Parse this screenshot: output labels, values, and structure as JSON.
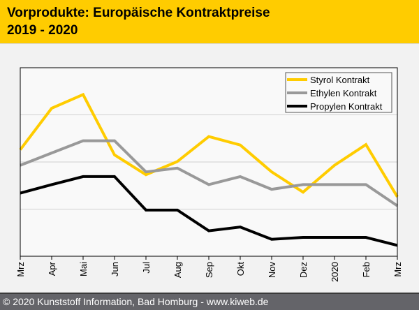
{
  "header": {
    "title_line1": "Vorprodukte: Europäische Kontraktpreise",
    "title_line2": "2019 - 2020"
  },
  "footer": {
    "text": "© 2020 Kunststoff Information, Bad Homburg - www.kiweb.de"
  },
  "colors": {
    "header_bg": "#ffcc00",
    "footer_bg": "#646469",
    "styrol": "#ffcc00",
    "ethylen": "#999999",
    "propylen": "#000000"
  },
  "chart_data": {
    "type": "line",
    "title": "",
    "xlabel": "",
    "ylabel": "",
    "categories": [
      "Mrz",
      "Apr",
      "Mai",
      "Jun",
      "Jul",
      "Aug",
      "Sep",
      "Okt",
      "Nov",
      "Dez",
      "2020",
      "Feb",
      "Mrz"
    ],
    "ylim": [
      0,
      4
    ],
    "y_ticks_labeled": false,
    "grid": "horizontal",
    "legend_position": "top-right",
    "series": [
      {
        "name": "Styrol Kontrakt",
        "color": "#ffcc00",
        "values": [
          2.26,
          3.14,
          3.43,
          2.15,
          1.73,
          2.01,
          2.54,
          2.36,
          1.79,
          1.36,
          1.93,
          2.37,
          1.26
        ]
      },
      {
        "name": "Ethylen Kontrakt",
        "color": "#999999",
        "values": [
          1.93,
          2.19,
          2.45,
          2.45,
          1.79,
          1.87,
          1.52,
          1.69,
          1.42,
          1.52,
          1.52,
          1.52,
          1.07
        ]
      },
      {
        "name": "Propylen Kontrakt",
        "color": "#000000",
        "values": [
          1.34,
          1.52,
          1.69,
          1.69,
          0.98,
          0.98,
          0.54,
          0.62,
          0.36,
          0.4,
          0.4,
          0.4,
          0.23
        ]
      }
    ]
  }
}
